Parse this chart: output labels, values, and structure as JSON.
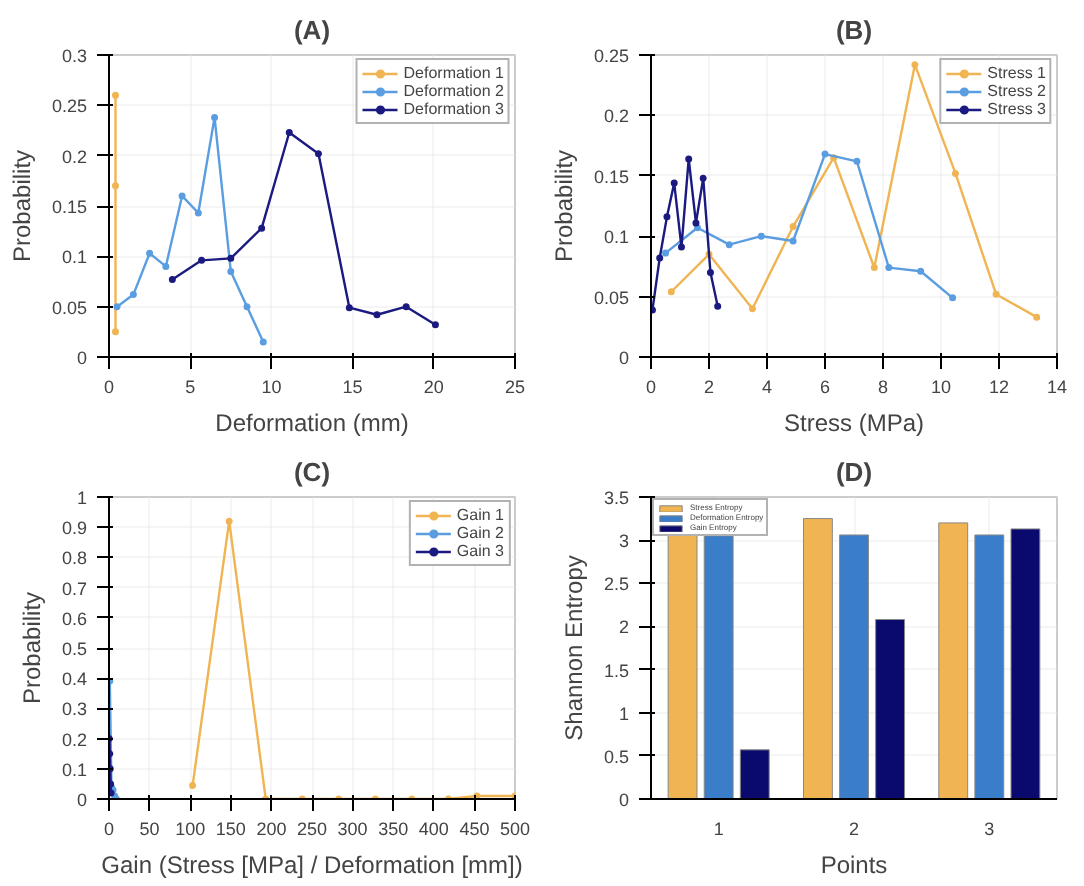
{
  "chart_data": [
    {
      "type": "line",
      "title": "(A)",
      "xlabel": "Deformation (mm)",
      "ylabel": "Probability",
      "xlim": [
        0,
        25
      ],
      "xticks": [
        0,
        5,
        10,
        15,
        20,
        25
      ],
      "ylim": [
        0,
        0.3
      ],
      "yticks": [
        0,
        0.05,
        0.1,
        0.15,
        0.2,
        0.25,
        0.3
      ],
      "grid": true,
      "legend": "top right",
      "marker": "circle",
      "series": [
        {
          "name": "Deformation 1",
          "color": "#f0b452",
          "x": [
            0.4,
            0.4,
            0.4
          ],
          "values": [
            0.025,
            0.17,
            0.26
          ]
        },
        {
          "name": "Deformation 2",
          "color": "#5a9de0",
          "x": [
            0.5,
            1.5,
            2.5,
            3.5,
            4.5,
            5.5,
            6.5,
            7.5,
            8.5,
            9.5
          ],
          "values": [
            0.05,
            0.062,
            0.103,
            0.09,
            0.16,
            0.143,
            0.238,
            0.085,
            0.05,
            0.015
          ]
        },
        {
          "name": "Deformation 3",
          "color": "#1a1a80",
          "x": [
            3.9,
            5.7,
            7.5,
            9.4,
            11.1,
            12.9,
            14.8,
            16.5,
            18.3,
            20.1
          ],
          "values": [
            0.077,
            0.096,
            0.098,
            0.128,
            0.223,
            0.202,
            0.049,
            0.042,
            0.05,
            0.032
          ]
        }
      ]
    },
    {
      "type": "line",
      "title": "(B)",
      "xlabel": "Stress (MPa)",
      "ylabel": "Probability",
      "xlim": [
        0,
        14
      ],
      "xticks": [
        0,
        2,
        4,
        6,
        8,
        10,
        12,
        14
      ],
      "ylim": [
        0,
        0.25
      ],
      "yticks": [
        0,
        0.05,
        0.1,
        0.15,
        0.2,
        0.25
      ],
      "grid": true,
      "legend": "top right",
      "marker": "circle",
      "series": [
        {
          "name": "Stress 1",
          "color": "#f0b452",
          "x": [
            0.7,
            2.0,
            3.5,
            4.9,
            6.3,
            7.7,
            9.1,
            10.5,
            11.9,
            13.3
          ],
          "values": [
            0.054,
            0.085,
            0.04,
            0.108,
            0.165,
            0.074,
            0.242,
            0.152,
            0.052,
            0.033
          ]
        },
        {
          "name": "Stress 2",
          "color": "#5a9de0",
          "x": [
            0.5,
            1.6,
            2.7,
            3.8,
            4.9,
            6.0,
            7.1,
            8.2,
            9.3,
            10.4
          ],
          "values": [
            0.086,
            0.107,
            0.093,
            0.1,
            0.096,
            0.168,
            0.162,
            0.074,
            0.071,
            0.049
          ]
        },
        {
          "name": "Stress 3",
          "color": "#1a1a80",
          "x": [
            0.05,
            0.3,
            0.55,
            0.8,
            1.05,
            1.3,
            1.55,
            1.8,
            2.05,
            2.3
          ],
          "values": [
            0.039,
            0.082,
            0.116,
            0.144,
            0.091,
            0.164,
            0.111,
            0.148,
            0.07,
            0.042
          ]
        }
      ]
    },
    {
      "type": "line",
      "title": "(C)",
      "xlabel": "Gain (Stress [MPa] / Deformation [mm])",
      "ylabel": "Probability",
      "xlim": [
        0,
        500
      ],
      "xticks": [
        0,
        50,
        100,
        150,
        200,
        250,
        300,
        350,
        400,
        450,
        500
      ],
      "ylim": [
        0,
        1
      ],
      "yticks": [
        0,
        0.1,
        0.2,
        0.3,
        0.4,
        0.5,
        0.6,
        0.7,
        0.8,
        0.9,
        1
      ],
      "grid": true,
      "legend": "top right",
      "marker": "circle",
      "series": [
        {
          "name": "Gain 1",
          "color": "#f0b452",
          "x": [
            103,
            148,
            193,
            238,
            283,
            328,
            373,
            418,
            453,
            500
          ],
          "values": [
            0.045,
            0.92,
            0,
            0,
            0,
            0,
            0,
            0,
            0.01,
            0.01
          ]
        },
        {
          "name": "Gain 2",
          "color": "#5a9de0",
          "x": [
            1,
            3,
            5,
            7,
            9
          ],
          "values": [
            0.39,
            0.04,
            0.03,
            0.01,
            0
          ]
        },
        {
          "name": "Gain 3",
          "color": "#1a1a80",
          "x": [
            0.5,
            1,
            1.5,
            2,
            2.5
          ],
          "values": [
            0.2,
            0.15,
            0.1,
            0.05,
            0.02
          ]
        }
      ]
    },
    {
      "type": "bar",
      "title": "(D)",
      "xlabel": "Points",
      "ylabel": "Shannon Entropy",
      "categories": [
        "1",
        "2",
        "3"
      ],
      "ylim": [
        0,
        3.5
      ],
      "yticks": [
        0,
        0.5,
        1,
        1.5,
        2,
        2.5,
        3,
        3.5
      ],
      "grid": true,
      "legend": "top left",
      "series": [
        {
          "name": "Stress Entropy",
          "color": "#f0b452",
          "values": [
            3.08,
            3.25,
            3.2
          ]
        },
        {
          "name": "Deformation Entropy",
          "color": "#3a7dc8",
          "values": [
            3.05,
            3.06,
            3.06
          ]
        },
        {
          "name": "Gain Entropy",
          "color": "#0a0a6e",
          "values": [
            0.57,
            2.08,
            3.13
          ]
        }
      ]
    }
  ]
}
